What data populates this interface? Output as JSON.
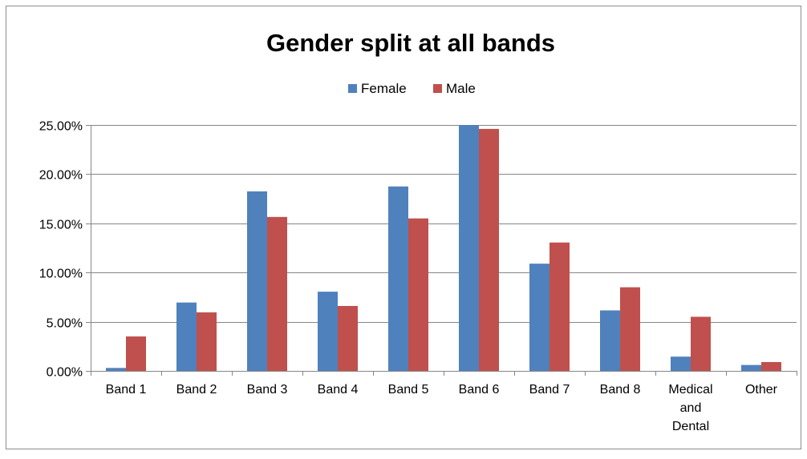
{
  "chart_data": {
    "type": "bar",
    "title": "Gender split at all bands",
    "xlabel": "",
    "ylabel": "",
    "categories": [
      [
        "Band 1"
      ],
      [
        "Band 2"
      ],
      [
        "Band 3"
      ],
      [
        "Band 4"
      ],
      [
        "Band 5"
      ],
      [
        "Band 6"
      ],
      [
        "Band 7"
      ],
      [
        "Band 8"
      ],
      [
        "Medical",
        "and",
        "Dental"
      ],
      [
        "Other"
      ]
    ],
    "series": [
      {
        "name": "Female",
        "color": "#4F81BD",
        "values": [
          0.3,
          6.95,
          18.25,
          8.05,
          18.75,
          25.0,
          10.9,
          6.15,
          1.45,
          0.6
        ]
      },
      {
        "name": "Male",
        "color": "#C0504D",
        "values": [
          3.5,
          5.95,
          15.65,
          6.6,
          15.5,
          24.6,
          13.05,
          8.5,
          5.5,
          0.9
        ]
      }
    ],
    "ylim": [
      0,
      25
    ],
    "yticks": [
      0,
      5,
      10,
      15,
      20,
      25
    ],
    "ytick_labels": [
      "0.00%",
      "5.00%",
      "10.00%",
      "15.00%",
      "20.00%",
      "25.00%"
    ],
    "grid": true,
    "legend_position": "top-center"
  }
}
